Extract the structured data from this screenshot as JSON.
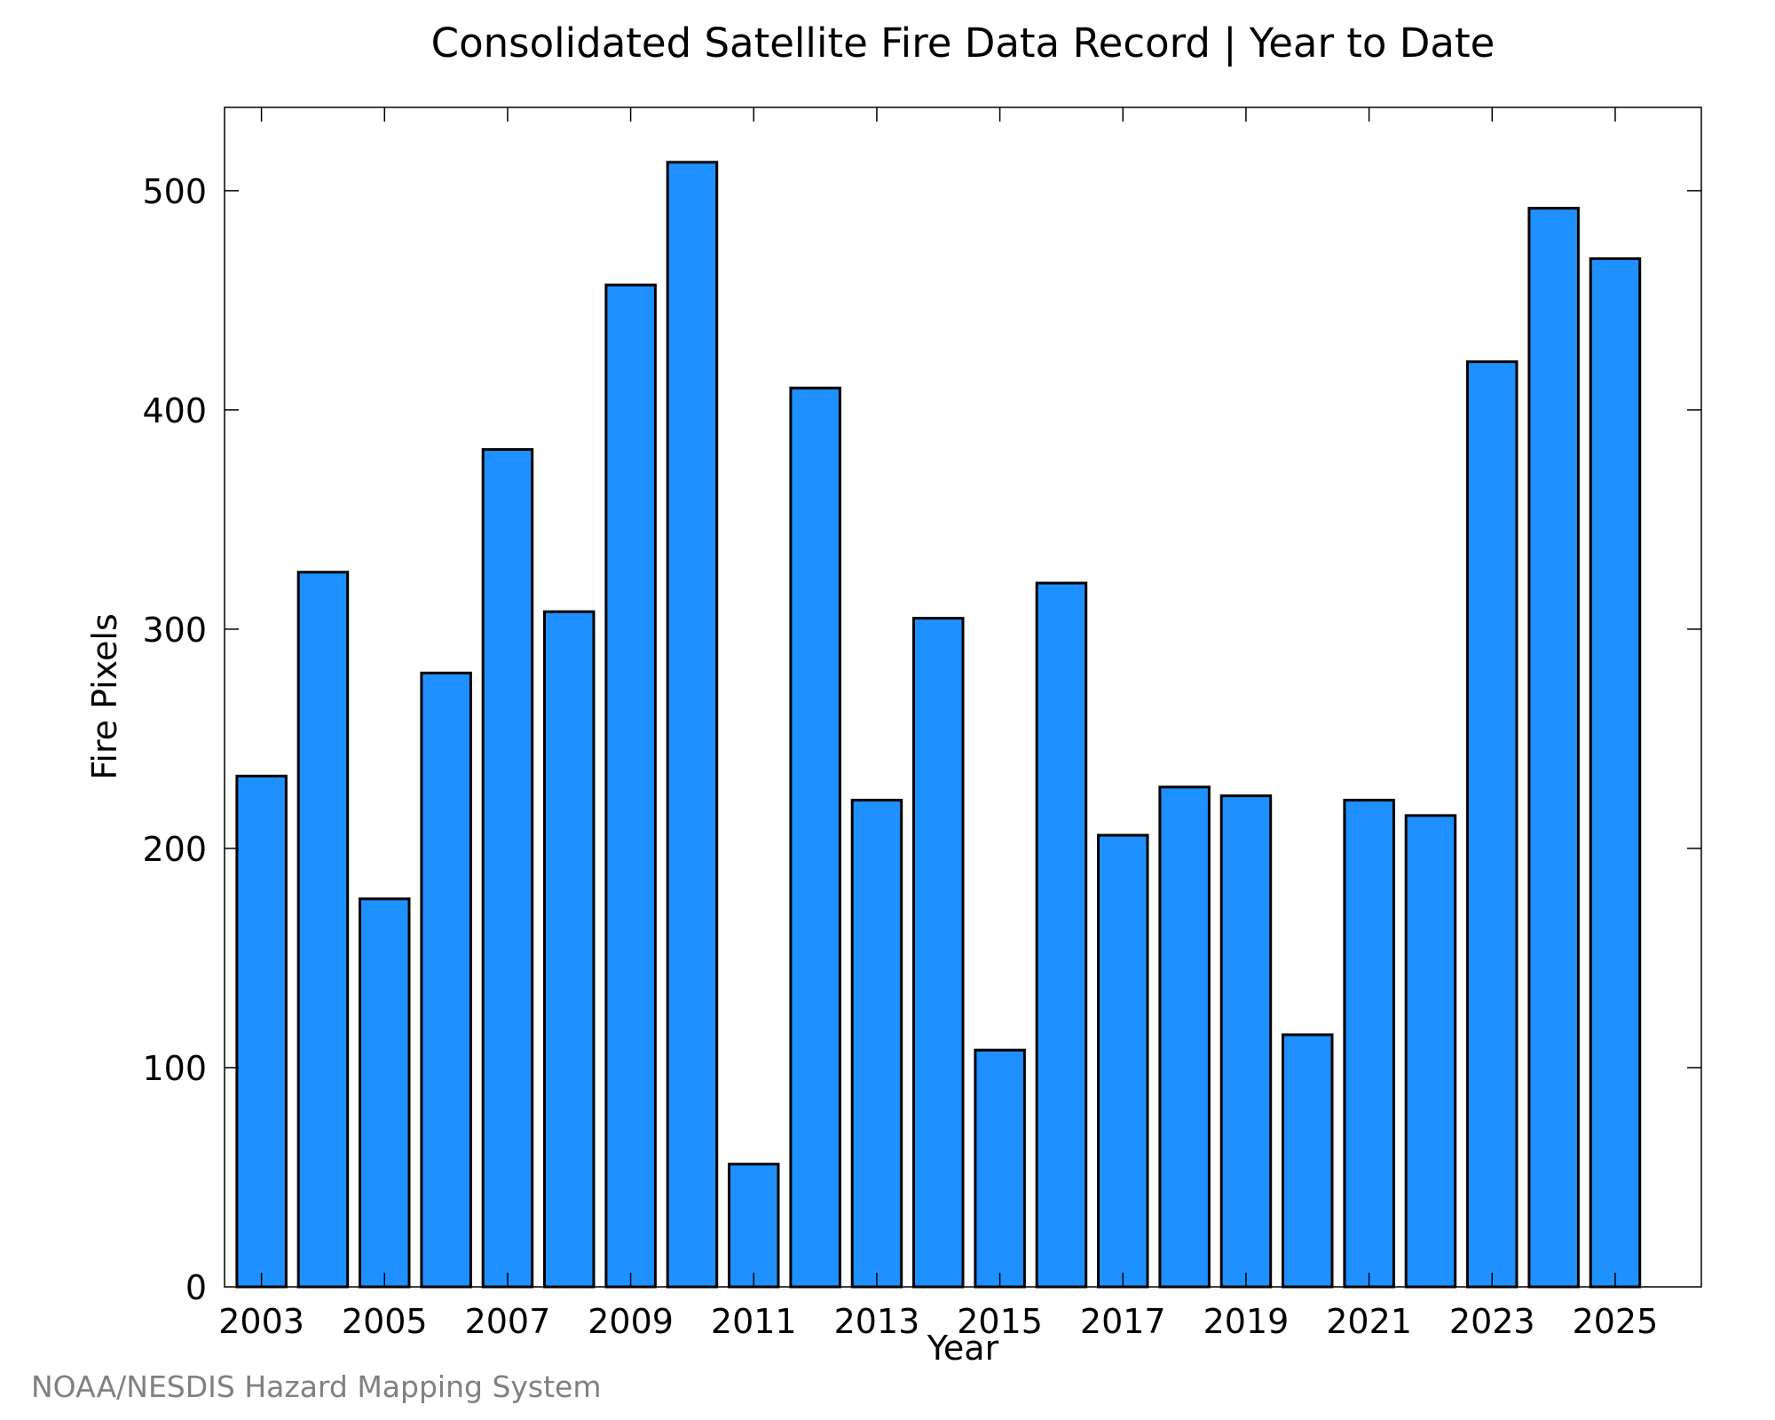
{
  "chart_data": {
    "type": "bar",
    "title": "Consolidated Satellite Fire Data Record | Year to Date",
    "xlabel": "Year",
    "ylabel": "Fire Pixels",
    "categories": [
      2003,
      2004,
      2005,
      2006,
      2007,
      2008,
      2009,
      2010,
      2011,
      2012,
      2013,
      2014,
      2015,
      2016,
      2017,
      2018,
      2019,
      2020,
      2021,
      2022,
      2023,
      2024,
      2025
    ],
    "values": [
      233,
      326,
      177,
      280,
      382,
      308,
      457,
      513,
      56,
      410,
      222,
      305,
      108,
      321,
      206,
      228,
      224,
      115,
      222,
      215,
      422,
      492,
      469
    ],
    "x_tick_labels": [
      "2003",
      "2005",
      "2007",
      "2009",
      "2011",
      "2013",
      "2015",
      "2017",
      "2019",
      "2021",
      "2023",
      "2025"
    ],
    "y_ticks": [
      0,
      100,
      200,
      300,
      400,
      500
    ],
    "xlim": [
      2002.4,
      2026.4
    ],
    "ylim": [
      0,
      538
    ],
    "bar_color": "#1e90ff",
    "grid": false,
    "legend": "none"
  },
  "credit": "NOAA/NESDIS Hazard Mapping System"
}
